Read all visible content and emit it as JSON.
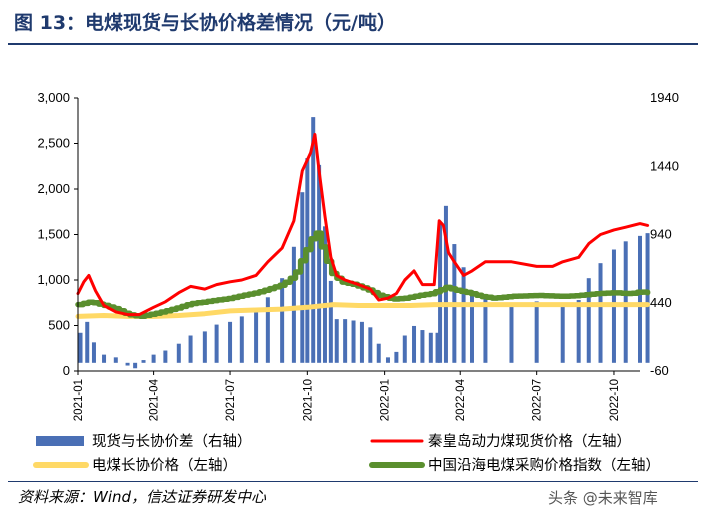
{
  "title": "图 13：电煤现货与长协价格差情况（元/吨）",
  "source": "资料来源：Wind，信达证券研发中心",
  "watermark": "头条 @未来智库",
  "chart_data": {
    "type": "bar+line",
    "left_axis": {
      "ticks": [
        "0",
        "500",
        "1,000",
        "1,500",
        "2,000",
        "2,500",
        "3,000"
      ],
      "range": [
        0,
        3000
      ]
    },
    "right_axis": {
      "ticks": [
        "-60",
        "440",
        "940",
        "1440",
        "1940"
      ],
      "range": [
        -60,
        1940
      ]
    },
    "x_ticks": [
      "2021-01",
      "2021-04",
      "2021-07",
      "2021-10",
      "2022-01",
      "2022-04",
      "2022-07",
      "2022-10"
    ],
    "x_range": [
      "2021-01",
      "2022-11"
    ],
    "colors": {
      "spread": "#4a6fb5",
      "qhd": "#ff0000",
      "contract": "#ffd966",
      "cci": "#5a8f2e"
    },
    "series": [
      {
        "name": "现货与长协价差（右轴）",
        "axis": "right",
        "kind": "bar",
        "points": [
          [
            "2021-01-04",
            220
          ],
          [
            "2021-01-12",
            300
          ],
          [
            "2021-01-20",
            150
          ],
          [
            "2021-02-01",
            60
          ],
          [
            "2021-02-15",
            40
          ],
          [
            "2021-03-01",
            -20
          ],
          [
            "2021-03-10",
            -40
          ],
          [
            "2021-03-20",
            20
          ],
          [
            "2021-04-01",
            60
          ],
          [
            "2021-04-15",
            90
          ],
          [
            "2021-05-01",
            140
          ],
          [
            "2021-05-15",
            200
          ],
          [
            "2021-06-01",
            230
          ],
          [
            "2021-06-15",
            280
          ],
          [
            "2021-07-01",
            300
          ],
          [
            "2021-07-15",
            340
          ],
          [
            "2021-08-01",
            400
          ],
          [
            "2021-08-15",
            480
          ],
          [
            "2021-09-01",
            620
          ],
          [
            "2021-09-15",
            850
          ],
          [
            "2021-09-25",
            1250
          ],
          [
            "2021-10-01",
            1500
          ],
          [
            "2021-10-08",
            1800
          ],
          [
            "2021-10-15",
            1450
          ],
          [
            "2021-10-22",
            1000
          ],
          [
            "2021-10-29",
            600
          ],
          [
            "2021-11-05",
            320
          ],
          [
            "2021-11-15",
            320
          ],
          [
            "2021-11-25",
            310
          ],
          [
            "2021-12-05",
            300
          ],
          [
            "2021-12-15",
            260
          ],
          [
            "2021-12-25",
            140
          ],
          [
            "2022-01-05",
            40
          ],
          [
            "2022-01-15",
            80
          ],
          [
            "2022-01-25",
            200
          ],
          [
            "2022-02-05",
            270
          ],
          [
            "2022-02-15",
            240
          ],
          [
            "2022-02-25",
            220
          ],
          [
            "2022-03-05",
            220
          ],
          [
            "2022-03-08",
            1020
          ],
          [
            "2022-03-15",
            1150
          ],
          [
            "2022-03-25",
            870
          ],
          [
            "2022-04-05",
            700
          ],
          [
            "2022-04-15",
            530
          ],
          [
            "2022-05-01",
            470
          ],
          [
            "2022-06-01",
            440
          ],
          [
            "2022-07-01",
            450
          ],
          [
            "2022-08-01",
            430
          ],
          [
            "2022-08-20",
            460
          ],
          [
            "2022-09-01",
            620
          ],
          [
            "2022-09-15",
            730
          ],
          [
            "2022-10-01",
            830
          ],
          [
            "2022-10-15",
            890
          ],
          [
            "2022-11-01",
            930
          ],
          [
            "2022-11-10",
            950
          ]
        ]
      },
      {
        "name": "秦皇岛动力煤现货价格（左轴）",
        "axis": "left",
        "kind": "line",
        "points": [
          [
            "2021-01-01",
            850
          ],
          [
            "2021-01-08",
            980
          ],
          [
            "2021-01-14",
            1050
          ],
          [
            "2021-01-22",
            880
          ],
          [
            "2021-02-01",
            720
          ],
          [
            "2021-02-15",
            650
          ],
          [
            "2021-03-01",
            620
          ],
          [
            "2021-03-15",
            620
          ],
          [
            "2021-04-01",
            700
          ],
          [
            "2021-04-15",
            760
          ],
          [
            "2021-05-01",
            860
          ],
          [
            "2021-05-15",
            930
          ],
          [
            "2021-06-01",
            900
          ],
          [
            "2021-06-15",
            950
          ],
          [
            "2021-07-01",
            980
          ],
          [
            "2021-07-15",
            1000
          ],
          [
            "2021-08-01",
            1050
          ],
          [
            "2021-08-15",
            1200
          ],
          [
            "2021-09-01",
            1350
          ],
          [
            "2021-09-15",
            1650
          ],
          [
            "2021-09-25",
            2200
          ],
          [
            "2021-10-05",
            2400
          ],
          [
            "2021-10-10",
            2600
          ],
          [
            "2021-10-15",
            2200
          ],
          [
            "2021-10-22",
            1700
          ],
          [
            "2021-10-29",
            1250
          ],
          [
            "2021-11-05",
            1050
          ],
          [
            "2021-11-15",
            1000
          ],
          [
            "2021-12-01",
            950
          ],
          [
            "2021-12-15",
            900
          ],
          [
            "2021-12-25",
            780
          ],
          [
            "2022-01-05",
            800
          ],
          [
            "2022-01-15",
            850
          ],
          [
            "2022-01-25",
            1000
          ],
          [
            "2022-02-05",
            1100
          ],
          [
            "2022-02-15",
            950
          ],
          [
            "2022-03-01",
            950
          ],
          [
            "2022-03-07",
            1650
          ],
          [
            "2022-03-12",
            1600
          ],
          [
            "2022-03-18",
            1300
          ],
          [
            "2022-03-25",
            1200
          ],
          [
            "2022-04-05",
            1050
          ],
          [
            "2022-04-15",
            1100
          ],
          [
            "2022-05-01",
            1200
          ],
          [
            "2022-06-01",
            1200
          ],
          [
            "2022-07-01",
            1150
          ],
          [
            "2022-07-20",
            1150
          ],
          [
            "2022-08-01",
            1200
          ],
          [
            "2022-08-20",
            1250
          ],
          [
            "2022-09-01",
            1400
          ],
          [
            "2022-09-15",
            1500
          ],
          [
            "2022-10-01",
            1550
          ],
          [
            "2022-10-15",
            1580
          ],
          [
            "2022-11-01",
            1620
          ],
          [
            "2022-11-10",
            1600
          ]
        ]
      },
      {
        "name": "电煤长协价格（左轴）",
        "axis": "left",
        "kind": "line",
        "points": [
          [
            "2021-01-01",
            600
          ],
          [
            "2021-02-01",
            610
          ],
          [
            "2021-03-01",
            600
          ],
          [
            "2021-04-01",
            600
          ],
          [
            "2021-05-01",
            610
          ],
          [
            "2021-06-01",
            630
          ],
          [
            "2021-07-01",
            660
          ],
          [
            "2021-08-01",
            670
          ],
          [
            "2021-09-01",
            680
          ],
          [
            "2021-10-01",
            700
          ],
          [
            "2021-11-01",
            730
          ],
          [
            "2021-12-01",
            720
          ],
          [
            "2022-01-01",
            720
          ],
          [
            "2022-02-01",
            720
          ],
          [
            "2022-03-01",
            730
          ],
          [
            "2022-04-01",
            730
          ],
          [
            "2022-05-01",
            730
          ],
          [
            "2022-06-01",
            730
          ],
          [
            "2022-07-01",
            730
          ],
          [
            "2022-08-01",
            730
          ],
          [
            "2022-09-01",
            730
          ],
          [
            "2022-10-01",
            730
          ],
          [
            "2022-11-10",
            730
          ]
        ]
      },
      {
        "name": "中国沿海电煤采购价格指数（左轴）",
        "axis": "left",
        "kind": "line",
        "points": [
          [
            "2021-01-01",
            730
          ],
          [
            "2021-01-15",
            760
          ],
          [
            "2021-02-01",
            720
          ],
          [
            "2021-02-15",
            680
          ],
          [
            "2021-03-01",
            620
          ],
          [
            "2021-03-15",
            600
          ],
          [
            "2021-04-01",
            630
          ],
          [
            "2021-04-15",
            660
          ],
          [
            "2021-05-01",
            700
          ],
          [
            "2021-05-15",
            740
          ],
          [
            "2021-06-01",
            760
          ],
          [
            "2021-06-15",
            780
          ],
          [
            "2021-07-01",
            800
          ],
          [
            "2021-07-15",
            830
          ],
          [
            "2021-08-01",
            860
          ],
          [
            "2021-08-15",
            900
          ],
          [
            "2021-09-01",
            950
          ],
          [
            "2021-09-15",
            1050
          ],
          [
            "2021-09-25",
            1250
          ],
          [
            "2021-10-05",
            1450
          ],
          [
            "2021-10-12",
            1520
          ],
          [
            "2021-10-20",
            1300
          ],
          [
            "2021-10-29",
            1080
          ],
          [
            "2021-11-10",
            980
          ],
          [
            "2021-11-25",
            950
          ],
          [
            "2021-12-10",
            900
          ],
          [
            "2021-12-25",
            830
          ],
          [
            "2022-01-10",
            790
          ],
          [
            "2022-01-25",
            800
          ],
          [
            "2022-02-10",
            830
          ],
          [
            "2022-02-25",
            850
          ],
          [
            "2022-03-05",
            880
          ],
          [
            "2022-03-15",
            920
          ],
          [
            "2022-03-25",
            890
          ],
          [
            "2022-04-10",
            860
          ],
          [
            "2022-04-25",
            820
          ],
          [
            "2022-05-10",
            800
          ],
          [
            "2022-06-01",
            820
          ],
          [
            "2022-07-01",
            830
          ],
          [
            "2022-08-01",
            820
          ],
          [
            "2022-08-20",
            830
          ],
          [
            "2022-09-10",
            850
          ],
          [
            "2022-10-01",
            860
          ],
          [
            "2022-10-20",
            850
          ],
          [
            "2022-11-01",
            870
          ],
          [
            "2022-11-10",
            860
          ]
        ]
      }
    ],
    "legend_position": "bottom"
  }
}
